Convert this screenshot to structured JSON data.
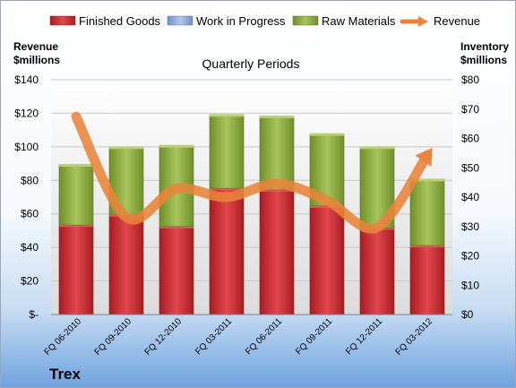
{
  "chart_data": {
    "type": "bar",
    "subtitle": "Quarterly Periods",
    "company": "Trex",
    "left_axis_title": [
      "Revenue",
      "$millions"
    ],
    "right_axis_title": [
      "Inventory",
      "$millions"
    ],
    "categories": [
      "FQ 06-2010",
      "FQ 09-2010",
      "FQ 12-2010",
      "FQ 03-2011",
      "FQ 06-2011",
      "FQ 09-2011",
      "FQ 12-2011",
      "FQ 03-2012"
    ],
    "left_ticks": [
      "$-",
      "$20",
      "$40",
      "$60",
      "$80",
      "$100",
      "$120",
      "$140"
    ],
    "right_ticks": [
      "$0",
      "$10",
      "$20",
      "$30",
      "$40",
      "$50",
      "$60",
      "$70",
      "$80"
    ],
    "left_ylim": [
      0,
      140
    ],
    "right_ylim": [
      0,
      80
    ],
    "stacked": true,
    "series": [
      {
        "name": "Finished Goods",
        "axis": "right",
        "color": "#c0272d",
        "values": [
          30.5,
          34,
          30,
          43,
          42.5,
          37,
          29.5,
          23.5
        ]
      },
      {
        "name": "Work in Progress",
        "axis": "right",
        "color": "#8aaad6",
        "values": [
          0,
          0,
          0,
          0,
          0,
          0,
          0,
          0
        ]
      },
      {
        "name": "Raw Materials",
        "axis": "right",
        "color": "#8aaa3c",
        "values": [
          20.5,
          23,
          27.5,
          25,
          25,
          24.5,
          27.5,
          22.5
        ]
      },
      {
        "name": "Revenue",
        "axis": "left",
        "type": "line",
        "color": "#e8843a",
        "values": [
          118,
          58,
          75,
          70,
          78,
          68,
          52,
          95
        ]
      }
    ],
    "grid": true,
    "legend_position": "top"
  }
}
